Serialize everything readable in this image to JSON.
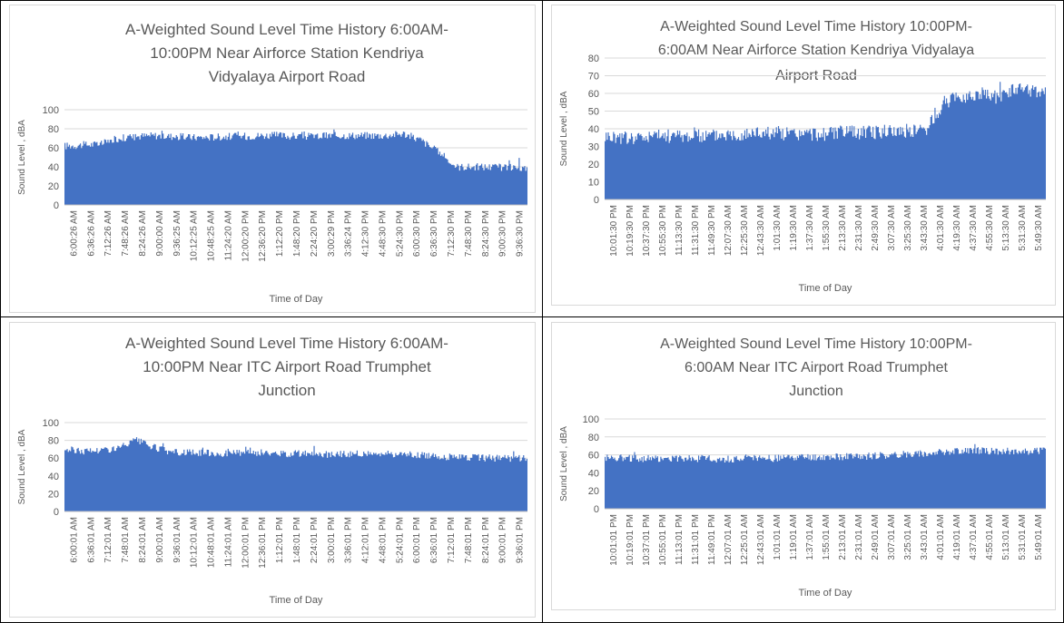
{
  "chart_data": [
    {
      "type": "bar",
      "title_lines": [
        "A-Weighted Sound Level Time History 6:00AM-",
        "10:00PM Near Airforce Station Kendriya",
        "Vidyalaya Airport Road"
      ],
      "xlabel": "Time of Day",
      "ylabel": "Sound Level , dBA",
      "ylim": [
        0,
        100
      ],
      "yticks": [
        0,
        20,
        40,
        60,
        80,
        100
      ],
      "grid": true,
      "color": "#4472c4",
      "categories": [
        "6:00:26 AM",
        "6:36:26 AM",
        "7:12:26 AM",
        "7:48:26 AM",
        "8:24:26 AM",
        "9:00:00 AM",
        "9:36:25 AM",
        "10:12:25 AM",
        "10:48:25 AM",
        "11:24:20 AM",
        "12:00:20 PM",
        "12:36:20 PM",
        "1:12:20 PM",
        "1:48:20 PM",
        "2:24:20 PM",
        "3:00:29 PM",
        "3:36:24 PM",
        "4:12:30 PM",
        "4:48:30 PM",
        "5:24:30 PM",
        "6:00:30 PM",
        "6:36:30 PM",
        "7:12:30 PM",
        "7:48:30 PM",
        "8:24:30 PM",
        "9:00:30 PM",
        "9:36:30 PM"
      ],
      "values": [
        62,
        63,
        64,
        70,
        72,
        73,
        72,
        71,
        71,
        72,
        72,
        73,
        73,
        72,
        72,
        73,
        73,
        73,
        73,
        75,
        68,
        55,
        40,
        40,
        40,
        39,
        38
      ]
    },
    {
      "type": "bar",
      "title_lines": [
        "A-Weighted Sound Level Time History 10:00PM-",
        "6:00AM Near Airforce Station Kendriya Vidyalaya",
        "Airport Road"
      ],
      "xlabel": "Time of Day",
      "ylabel": "Sound Level , dBA",
      "ylim": [
        0,
        80
      ],
      "yticks": [
        0,
        10,
        20,
        30,
        40,
        50,
        60,
        70,
        80
      ],
      "grid": true,
      "color": "#4472c4",
      "categories": [
        "10:01:30 PM",
        "10:19:30 PM",
        "10:37:30 PM",
        "10:55:30 PM",
        "11:13:30 PM",
        "11:31:30 PM",
        "11:49:30 PM",
        "12:07:30 AM",
        "12:25:30 AM",
        "12:43:30 AM",
        "1:01:30 AM",
        "1:19:30 AM",
        "1:37:30 AM",
        "1:55:30 AM",
        "2:13:30 AM",
        "2:31:30 AM",
        "2:49:30 AM",
        "3:07:30 AM",
        "3:25:30 AM",
        "3:43:30 AM",
        "4:01:30 AM",
        "4:19:30 AM",
        "4:37:30 AM",
        "4:55:30 AM",
        "5:13:30 AM",
        "5:31:30 AM",
        "5:49:30 AM"
      ],
      "values": [
        36,
        35,
        35,
        36,
        36,
        36,
        36,
        37,
        37,
        38,
        38,
        37,
        37,
        37,
        38,
        38,
        38,
        39,
        39,
        40,
        55,
        58,
        60,
        58,
        62,
        62,
        60
      ]
    },
    {
      "type": "bar",
      "title_lines": [
        "A-Weighted Sound Level Time History 6:00AM-",
        "10:00PM Near ITC Airport Road Trumphet",
        "Junction"
      ],
      "xlabel": "Time of Day",
      "ylabel": "Sound Level , dBA",
      "ylim": [
        0,
        100
      ],
      "yticks": [
        0,
        20,
        40,
        60,
        80,
        100
      ],
      "grid": true,
      "color": "#4472c4",
      "categories": [
        "6:00:01 AM",
        "6:36:01 AM",
        "7:12:01 AM",
        "7:48:01 AM",
        "8:24:01 AM",
        "9:00:01 AM",
        "9:36:01 AM",
        "10:12:01 AM",
        "10:48:01 AM",
        "11:24:01 AM",
        "12:00:01 PM",
        "12:36:01 PM",
        "1:12:01 PM",
        "1:48:01 PM",
        "2:24:01 PM",
        "3:00:01 PM",
        "3:36:01 PM",
        "4:12:01 PM",
        "4:48:01 PM",
        "5:24:01 PM",
        "6:00:01 PM",
        "6:36:01 PM",
        "7:12:01 PM",
        "7:48:01 PM",
        "8:24:01 PM",
        "9:00:01 PM",
        "9:36:01 PM"
      ],
      "values": [
        70,
        68,
        69,
        71,
        80,
        72,
        67,
        66,
        66,
        65,
        66,
        66,
        65,
        65,
        65,
        64,
        65,
        65,
        65,
        64,
        63,
        62,
        61,
        61,
        60,
        60,
        60
      ]
    },
    {
      "type": "bar",
      "title_lines": [
        "A-Weighted Sound Level Time History 10:00PM-",
        "6:00AM Near ITC Airport Road Trumphet",
        "Junction"
      ],
      "xlabel": "Time of Day",
      "ylabel": "Sound Level , dBA",
      "ylim": [
        0,
        100
      ],
      "yticks": [
        0,
        20,
        40,
        60,
        80,
        100
      ],
      "grid": true,
      "color": "#4472c4",
      "categories": [
        "10:01:01 PM",
        "10:19:01 PM",
        "10:37:01 PM",
        "10:55:01 PM",
        "11:13:01 PM",
        "11:31:01 PM",
        "11:49:01 PM",
        "12:07:01 AM",
        "12:25:01 AM",
        "12:43:01 AM",
        "1:01:01 AM",
        "1:19:01 AM",
        "1:37:01 AM",
        "1:55:01 AM",
        "2:13:01 AM",
        "2:31:01 AM",
        "2:49:01 AM",
        "3:07:01 AM",
        "3:25:01 AM",
        "3:43:01 AM",
        "4:01:01 AM",
        "4:19:01 AM",
        "4:37:01 AM",
        "4:55:01 AM",
        "5:13:01 AM",
        "5:31:01 AM",
        "5:49:01 AM"
      ],
      "values": [
        57,
        57,
        56,
        56,
        56,
        56,
        56,
        55,
        56,
        56,
        56,
        57,
        57,
        57,
        58,
        58,
        59,
        60,
        61,
        62,
        63,
        64,
        65,
        64,
        64,
        64,
        65
      ]
    }
  ]
}
